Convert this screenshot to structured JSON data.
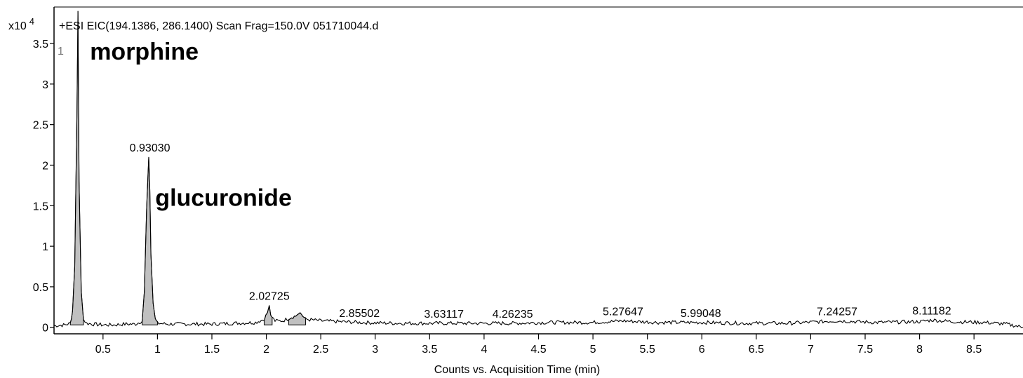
{
  "chart_data": {
    "type": "line",
    "title": "+ESI EIC(194.1386, 286.1400) Scan Frag=150.0V 051710044.d",
    "y_exponent_label": "x10",
    "y_exponent_power": "4",
    "xlabel": "Counts vs. Acquisition Time (min)",
    "ylabel": "",
    "xlim": [
      0.05,
      8.95
    ],
    "ylim": [
      -0.08,
      3.95
    ],
    "x_ticks": [
      0.5,
      1,
      1.5,
      2,
      2.5,
      3,
      3.5,
      4,
      4.5,
      5,
      5.5,
      6,
      6.5,
      7,
      7.5,
      8,
      8.5
    ],
    "x_tick_labels": [
      "0.5",
      "1",
      "1.5",
      "2",
      "2.5",
      "3",
      "3.5",
      "4",
      "4.5",
      "5",
      "5.5",
      "6",
      "6.5",
      "7",
      "7.5",
      "8",
      "8.5"
    ],
    "y_ticks": [
      0,
      0.5,
      1,
      1.5,
      2,
      2.5,
      3,
      3.5
    ],
    "y_tick_labels": [
      "0",
      "0.5",
      "1",
      "1.5",
      "2",
      "2.5",
      "3",
      "3.5"
    ],
    "grid": false,
    "legend": "none",
    "corner_label": "1",
    "series": [
      {
        "color": "#000000",
        "fill": "#c0c0c0",
        "x": [
          0.05,
          0.15,
          0.2,
          0.22,
          0.24,
          0.26,
          0.27,
          0.28,
          0.3,
          0.32,
          0.35,
          0.4,
          0.5,
          0.6,
          0.7,
          0.8,
          0.86,
          0.88,
          0.9,
          0.92,
          0.93,
          0.94,
          0.96,
          0.98,
          1.0,
          1.1,
          1.3,
          1.5,
          1.7,
          1.9,
          1.98,
          2.01,
          2.027,
          2.04,
          2.08,
          2.15,
          2.22,
          2.27,
          2.31,
          2.36,
          2.5,
          2.855,
          3.2,
          3.631,
          3.9,
          4.262,
          4.6,
          5.0,
          5.276,
          5.6,
          5.99,
          6.4,
          6.8,
          7.243,
          7.6,
          8.0,
          8.112,
          8.3,
          8.6,
          8.8,
          8.95
        ],
        "values": [
          0.02,
          0.03,
          0.05,
          0.2,
          0.75,
          2.6,
          3.9,
          1.8,
          0.45,
          0.1,
          0.05,
          0.04,
          0.03,
          0.03,
          0.04,
          0.04,
          0.08,
          0.45,
          1.45,
          2.1,
          1.7,
          0.9,
          0.3,
          0.1,
          0.05,
          0.04,
          0.04,
          0.04,
          0.05,
          0.06,
          0.1,
          0.18,
          0.27,
          0.15,
          0.08,
          0.08,
          0.12,
          0.14,
          0.18,
          0.1,
          0.08,
          0.06,
          0.05,
          0.05,
          0.05,
          0.05,
          0.06,
          0.06,
          0.08,
          0.06,
          0.06,
          0.05,
          0.05,
          0.08,
          0.06,
          0.07,
          0.09,
          0.07,
          0.06,
          0.04,
          0.0
        ]
      }
    ],
    "peak_labels": [
      {
        "x": 0.9303,
        "y": 2.1,
        "text": "0.93030"
      },
      {
        "x": 2.02725,
        "y": 0.27,
        "text": "2.02725"
      },
      {
        "x": 2.85502,
        "y": 0.06,
        "text": "2.85502"
      },
      {
        "x": 3.63117,
        "y": 0.05,
        "text": "3.63117"
      },
      {
        "x": 4.26235,
        "y": 0.05,
        "text": "4.26235"
      },
      {
        "x": 5.27647,
        "y": 0.08,
        "text": "5.27647"
      },
      {
        "x": 5.99048,
        "y": 0.06,
        "text": "5.99048"
      },
      {
        "x": 7.24257,
        "y": 0.08,
        "text": "7.24257"
      },
      {
        "x": 8.11182,
        "y": 0.09,
        "text": "8.11182"
      }
    ],
    "annotations": [
      {
        "x": 0.38,
        "y": 3.3,
        "text": "morphine"
      },
      {
        "x": 0.98,
        "y": 1.5,
        "text": "glucuronide"
      }
    ]
  }
}
